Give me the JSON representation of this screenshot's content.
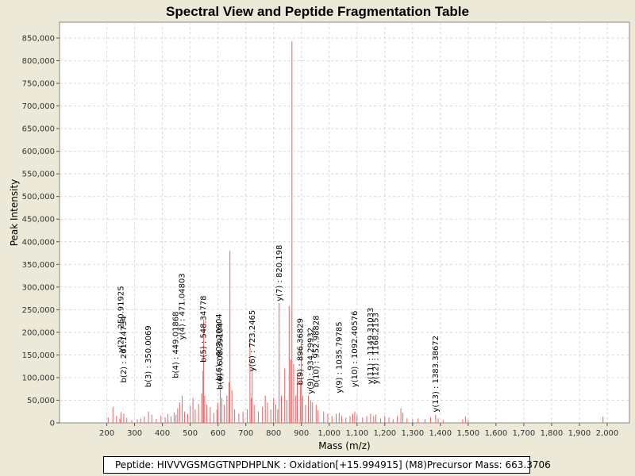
{
  "chart_data": {
    "type": "bar",
    "title": "Spectral View and Peptide Fragmentation Table",
    "xlabel": "Mass (m/z)",
    "ylabel": "Peak Intensity",
    "xlim": [
      30,
      2080
    ],
    "ylim": [
      0,
      885000
    ],
    "x_ticks": [
      200,
      300,
      400,
      500,
      600,
      700,
      800,
      900,
      1000,
      1100,
      1200,
      1300,
      1400,
      1500,
      1600,
      1700,
      1800,
      1900,
      2000
    ],
    "y_ticks": [
      0,
      50000,
      100000,
      150000,
      200000,
      250000,
      300000,
      350000,
      400000,
      450000,
      500000,
      550000,
      600000,
      650000,
      700000,
      750000,
      800000,
      850000
    ],
    "x_tick_labels": [
      "200",
      "300",
      "400",
      "500",
      "600",
      "700",
      "800",
      "900",
      "1,000",
      "1,100",
      "1,200",
      "1,300",
      "1,400",
      "1,500",
      "1,600",
      "1,700",
      "1,800",
      "1,900",
      "2,000"
    ],
    "y_tick_labels": [
      "0",
      "50,000",
      "100,000",
      "150,000",
      "200,000",
      "250,000",
      "300,000",
      "350,000",
      "400,000",
      "450,000",
      "500,000",
      "550,000",
      "600,000",
      "650,000",
      "700,000",
      "750,000",
      "800,000",
      "850,000"
    ],
    "grid": true,
    "series_color": "#F06060",
    "peaks": [
      [
        205,
        12000
      ],
      [
        222,
        35000
      ],
      [
        235,
        15000
      ],
      [
        247,
        9000
      ],
      [
        251,
        24000
      ],
      [
        261,
        20000
      ],
      [
        272,
        11000
      ],
      [
        290,
        6000
      ],
      [
        310,
        8000
      ],
      [
        322,
        10000
      ],
      [
        335,
        14000
      ],
      [
        350,
        25000
      ],
      [
        362,
        18000
      ],
      [
        378,
        9000
      ],
      [
        395,
        16000
      ],
      [
        410,
        12000
      ],
      [
        420,
        20000
      ],
      [
        431,
        14000
      ],
      [
        442,
        23000
      ],
      [
        449,
        18000
      ],
      [
        455,
        32000
      ],
      [
        462,
        45000
      ],
      [
        471,
        60000
      ],
      [
        480,
        25000
      ],
      [
        491,
        20000
      ],
      [
        500,
        38000
      ],
      [
        510,
        55000
      ],
      [
        518,
        30000
      ],
      [
        530,
        42000
      ],
      [
        541,
        65000
      ],
      [
        546,
        115000
      ],
      [
        548,
        228000
      ],
      [
        552,
        60000
      ],
      [
        560,
        40000
      ],
      [
        572,
        35000
      ],
      [
        585,
        22000
      ],
      [
        596,
        30000
      ],
      [
        600,
        45000
      ],
      [
        608,
        118000
      ],
      [
        614,
        55000
      ],
      [
        622,
        40000
      ],
      [
        632,
        60000
      ],
      [
        640,
        90000
      ],
      [
        643,
        380000
      ],
      [
        650,
        72000
      ],
      [
        660,
        30000
      ],
      [
        675,
        20000
      ],
      [
        690,
        25000
      ],
      [
        705,
        30000
      ],
      [
        715,
        190000
      ],
      [
        720,
        55000
      ],
      [
        723,
        120000
      ],
      [
        730,
        40000
      ],
      [
        745,
        25000
      ],
      [
        760,
        35000
      ],
      [
        770,
        60000
      ],
      [
        778,
        45000
      ],
      [
        790,
        30000
      ],
      [
        800,
        55000
      ],
      [
        808,
        40000
      ],
      [
        815,
        30000
      ],
      [
        820,
        265000
      ],
      [
        828,
        60000
      ],
      [
        840,
        120000
      ],
      [
        848,
        50000
      ],
      [
        856,
        258000
      ],
      [
        862,
        140000
      ],
      [
        866,
        843000
      ],
      [
        872,
        130000
      ],
      [
        880,
        60000
      ],
      [
        885,
        110000
      ],
      [
        896,
        90000
      ],
      [
        900,
        180000
      ],
      [
        905,
        60000
      ],
      [
        915,
        40000
      ],
      [
        925,
        60000
      ],
      [
        934,
        50000
      ],
      [
        940,
        45000
      ],
      [
        953,
        40000
      ],
      [
        960,
        28000
      ],
      [
        980,
        25000
      ],
      [
        995,
        20000
      ],
      [
        1010,
        15000
      ],
      [
        1025,
        20000
      ],
      [
        1036,
        22000
      ],
      [
        1045,
        15000
      ],
      [
        1060,
        12000
      ],
      [
        1075,
        15000
      ],
      [
        1085,
        20000
      ],
      [
        1092,
        25000
      ],
      [
        1100,
        18000
      ],
      [
        1120,
        12000
      ],
      [
        1135,
        15000
      ],
      [
        1149,
        20000
      ],
      [
        1160,
        15000
      ],
      [
        1168,
        18000
      ],
      [
        1185,
        10000
      ],
      [
        1200,
        15000
      ],
      [
        1215,
        12000
      ],
      [
        1230,
        8000
      ],
      [
        1245,
        15000
      ],
      [
        1258,
        32000
      ],
      [
        1265,
        22000
      ],
      [
        1280,
        10000
      ],
      [
        1300,
        8000
      ],
      [
        1320,
        10000
      ],
      [
        1345,
        8000
      ],
      [
        1365,
        12000
      ],
      [
        1383,
        18000
      ],
      [
        1392,
        10000
      ],
      [
        1410,
        6000
      ],
      [
        1480,
        8000
      ],
      [
        1490,
        14000
      ],
      [
        1500,
        6000
      ],
      [
        1985,
        14000
      ]
    ],
    "annotations": [
      {
        "label": "y(2) : 250.91925",
        "x": 250.9,
        "y": 152000
      },
      {
        "label": "b(2) : 261.14734",
        "x": 261.1,
        "y": 85000
      },
      {
        "label": "b(3) : 350.0069",
        "x": 350.0,
        "y": 75000
      },
      {
        "label": "b(4) : 449.01868",
        "x": 449.0,
        "y": 95000
      },
      {
        "label": "y(4) : 471.04803",
        "x": 471.0,
        "y": 180000
      },
      {
        "label": "b(5) : 548.34778",
        "x": 548.3,
        "y": 130000
      },
      {
        "label": "b(6) : 608.39104",
        "x": 608.4,
        "y": 70000
      },
      {
        "label": "b(6) : 603.20904",
        "x": 603.2,
        "y": 90000
      },
      {
        "label": "y(6) : 723.2465",
        "x": 723.2,
        "y": 110000
      },
      {
        "label": "y(7) : 820.198",
        "x": 820.2,
        "y": 265000
      },
      {
        "label": "b(9) : 896.36829",
        "x": 896.4,
        "y": 80000
      },
      {
        "label": "y(9) : 934.29932",
        "x": 934.3,
        "y": 60000
      },
      {
        "label": "b(10) : 952.98828",
        "x": 953.0,
        "y": 75000
      },
      {
        "label": "y(9) : 1035.79785",
        "x": 1035.8,
        "y": 62000
      },
      {
        "label": "y(10) : 1092.40576",
        "x": 1092.4,
        "y": 75000
      },
      {
        "label": "y(11) : 1149.31033",
        "x": 1149.3,
        "y": 82000
      },
      {
        "label": "y(12) : 1168.2153",
        "x": 1168.2,
        "y": 82000
      }
    ],
    "annotations_top_right": [
      {
        "label": "y(13) : 1383.38672",
        "x": 1383.4,
        "y": 20000
      }
    ]
  },
  "legend": {
    "peptide_text": "Peptide: HIVVVGSMGGTNPDHPLNK : Oxidation[+15.994915] (M8)",
    "precursor_text": "Precursor Mass: 663.3706"
  }
}
